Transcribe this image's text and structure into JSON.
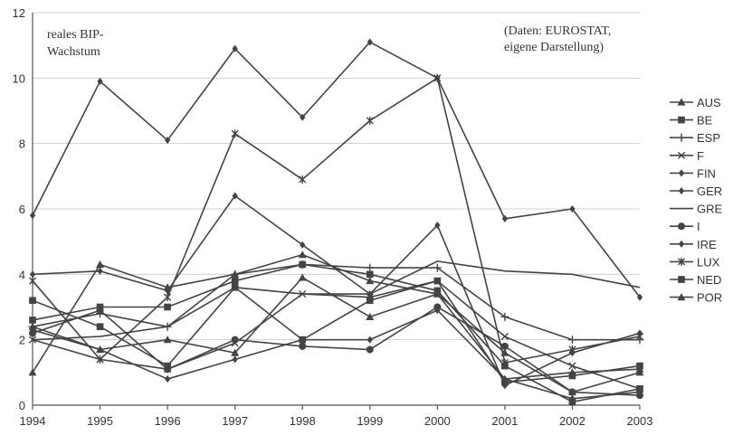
{
  "chart_data": {
    "type": "line",
    "x": [
      1994,
      1995,
      1996,
      1997,
      1998,
      1999,
      2000,
      2001,
      2002,
      2003
    ],
    "ylim": [
      0,
      12
    ],
    "yticks": [
      0,
      2,
      4,
      6,
      8,
      10,
      12
    ],
    "grid": true,
    "legend_position": "right",
    "annotation_left": [
      "reales BIP-",
      "Wachstum"
    ],
    "annotation_right": [
      "(Daten: EUROSTAT,",
      "eigene Darstellung)"
    ],
    "series": [
      {
        "name": "AUS",
        "marker": "triangle",
        "values": [
          2.4,
          1.7,
          2.0,
          1.6,
          3.9,
          2.7,
          3.4,
          0.8,
          1.0,
          1.1
        ]
      },
      {
        "name": "BE",
        "marker": "square",
        "values": [
          3.2,
          2.4,
          1.2,
          3.6,
          2.0,
          3.2,
          3.8,
          0.7,
          0.9,
          1.2
        ]
      },
      {
        "name": "ESP",
        "marker": "plus",
        "values": [
          2.4,
          2.8,
          2.4,
          4.0,
          4.3,
          4.2,
          4.2,
          2.7,
          2.0,
          2.0
        ]
      },
      {
        "name": "F",
        "marker": "x",
        "values": [
          2.0,
          1.4,
          1.1,
          1.9,
          3.4,
          3.3,
          3.8,
          2.1,
          1.2,
          0.5
        ]
      },
      {
        "name": "FIN",
        "marker": "diamond",
        "values": [
          4.0,
          4.1,
          3.5,
          6.4,
          4.9,
          3.4,
          5.5,
          0.6,
          1.6,
          2.2
        ]
      },
      {
        "name": "GER",
        "marker": "diamond",
        "values": [
          2.3,
          1.7,
          0.8,
          1.4,
          2.0,
          2.0,
          2.9,
          0.8,
          0.2,
          0.4
        ]
      },
      {
        "name": "GRE",
        "marker": "none",
        "values": [
          2.0,
          2.1,
          2.4,
          3.6,
          3.4,
          3.4,
          4.4,
          4.1,
          4.0,
          3.6
        ]
      },
      {
        "name": "I",
        "marker": "circle",
        "values": [
          2.2,
          2.9,
          1.1,
          2.0,
          1.8,
          1.7,
          3.0,
          1.8,
          0.4,
          0.3
        ]
      },
      {
        "name": "IRE",
        "marker": "diamond",
        "values": [
          5.8,
          9.9,
          8.1,
          10.9,
          8.8,
          11.1,
          10.0,
          5.7,
          6.0,
          3.3
        ]
      },
      {
        "name": "LUX",
        "marker": "asterisk",
        "values": [
          3.8,
          1.4,
          3.3,
          8.3,
          6.9,
          8.7,
          10.0,
          1.3,
          1.7,
          2.1
        ]
      },
      {
        "name": "NED",
        "marker": "square",
        "values": [
          2.6,
          3.0,
          3.0,
          3.8,
          4.3,
          4.0,
          3.5,
          1.2,
          0.1,
          0.5
        ]
      },
      {
        "name": "POR",
        "marker": "triangle",
        "values": [
          1.0,
          4.3,
          3.6,
          4.0,
          4.6,
          3.8,
          3.4,
          1.6,
          0.4,
          1.0
        ]
      }
    ]
  }
}
